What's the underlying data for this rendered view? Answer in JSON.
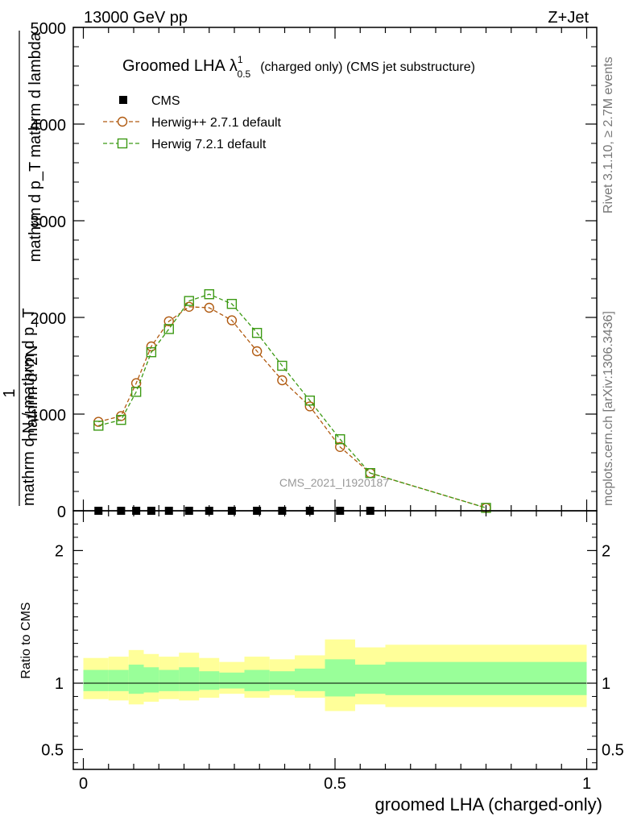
{
  "header": {
    "left": "13000 GeV pp",
    "right": "Z+Jet"
  },
  "title": {
    "main": "Groomed LHA",
    "lambda": "λ",
    "sup": "1",
    "sub": "0.5",
    "tail": "(charged only) (CMS jet substructure)"
  },
  "watermark": "CMS_2021_I1920187",
  "side_labels": {
    "rivet": "Rivet 3.1.10, ≥ 2.7M events",
    "mcplots": "mcplots.cern.ch [arXiv:1306.3436]"
  },
  "chart_data": [
    {
      "type": "line",
      "panel": "main",
      "ylabel_numerator": "1",
      "ylabel_denominator": "mathrm d N / mathrm d p_T",
      "ylabel_fraction_numerator": "mathrm d^2N",
      "ylabel_fraction_denominator": "mathrm d p_T mathrm d lambda",
      "ylim": [
        0,
        5000
      ],
      "yticks": [
        0,
        1000,
        2000,
        3000,
        4000,
        5000
      ],
      "ytick_labels": [
        "0",
        "1000",
        "2000",
        "3000",
        "4000",
        "5000"
      ],
      "xlim": [
        -0.02,
        1.02
      ],
      "legend_position": "top-left",
      "series": [
        {
          "name": "CMS",
          "style": "marker",
          "color": "#000000",
          "x": [
            0.03,
            0.075,
            0.105,
            0.135,
            0.17,
            0.21,
            0.25,
            0.295,
            0.345,
            0.395,
            0.45,
            0.51,
            0.57
          ],
          "y": [
            0,
            0,
            0,
            0,
            0,
            0,
            0,
            0,
            0,
            0,
            0,
            0,
            0
          ]
        },
        {
          "name": "Herwig++ 2.7.1 default",
          "style": "circle-dashed",
          "color": "#b05a10",
          "x": [
            0.03,
            0.075,
            0.105,
            0.135,
            0.17,
            0.21,
            0.25,
            0.295,
            0.345,
            0.395,
            0.45,
            0.51,
            0.57,
            0.8
          ],
          "y": [
            920,
            980,
            1320,
            1700,
            1960,
            2110,
            2100,
            1970,
            1650,
            1350,
            1080,
            660,
            390,
            30
          ]
        },
        {
          "name": "Herwig 7.2.1 default",
          "style": "square-dashed",
          "color": "#3c9a14",
          "x": [
            0.03,
            0.075,
            0.105,
            0.135,
            0.17,
            0.21,
            0.25,
            0.295,
            0.345,
            0.395,
            0.45,
            0.51,
            0.57,
            0.8
          ],
          "y": [
            880,
            940,
            1230,
            1640,
            1880,
            2170,
            2240,
            2140,
            1840,
            1500,
            1140,
            740,
            390,
            30
          ]
        }
      ]
    },
    {
      "type": "area",
      "panel": "ratio",
      "ylabel": "Ratio to CMS",
      "xlabel": "groomed LHA (charged-only)",
      "ylim": [
        0.35,
        2.3
      ],
      "yticks": [
        0.5,
        1,
        2
      ],
      "ytick_labels": [
        "0.5",
        "1",
        "2"
      ],
      "xlim": [
        -0.02,
        1.02
      ],
      "xticks": [
        0,
        0.5,
        1
      ],
      "xtick_labels": [
        "0",
        "0.5",
        "1"
      ],
      "bin_edges": [
        0,
        0.05,
        0.09,
        0.12,
        0.15,
        0.19,
        0.23,
        0.27,
        0.32,
        0.37,
        0.42,
        0.48,
        0.54,
        0.6,
        1.0
      ],
      "outer_band": {
        "color": "#ffff99",
        "lo": [
          0.88,
          0.87,
          0.84,
          0.86,
          0.88,
          0.87,
          0.89,
          0.92,
          0.89,
          0.91,
          0.89,
          0.79,
          0.84,
          0.82
        ],
        "hi": [
          1.19,
          1.2,
          1.25,
          1.22,
          1.2,
          1.23,
          1.19,
          1.16,
          1.2,
          1.18,
          1.21,
          1.33,
          1.27,
          1.29
        ]
      },
      "inner_band": {
        "color": "#99ff99",
        "lo": [
          0.94,
          0.94,
          0.92,
          0.93,
          0.94,
          0.94,
          0.95,
          0.96,
          0.94,
          0.95,
          0.94,
          0.9,
          0.92,
          0.91
        ],
        "hi": [
          1.1,
          1.1,
          1.14,
          1.12,
          1.1,
          1.12,
          1.09,
          1.08,
          1.1,
          1.09,
          1.11,
          1.18,
          1.14,
          1.16
        ]
      },
      "reference_line": 1.0
    }
  ]
}
